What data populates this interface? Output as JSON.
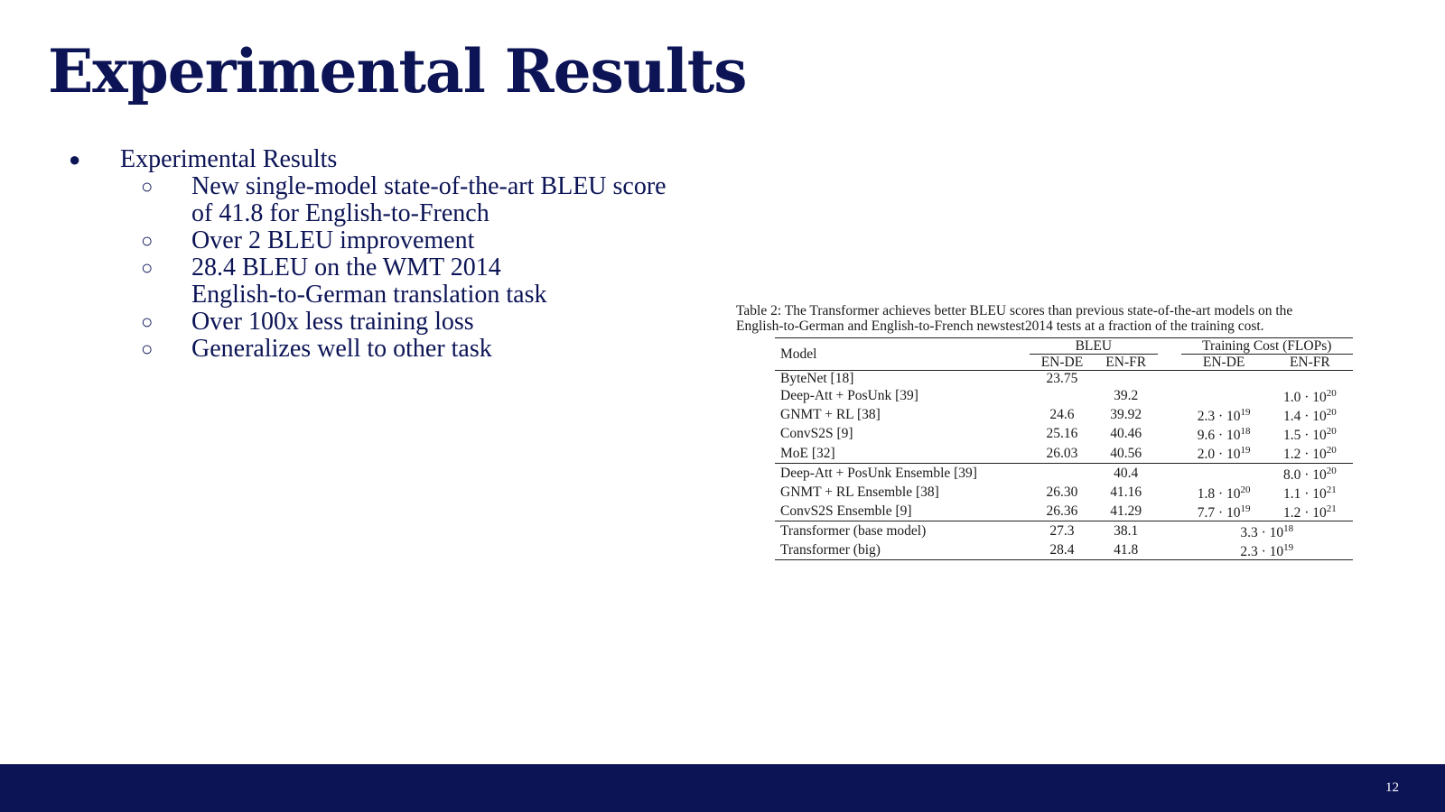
{
  "slide": {
    "title": "Experimental Results",
    "page_number": "12",
    "colors": {
      "title": "#0c1456",
      "footer_bar": "#0c1456",
      "background": "#ffffff"
    }
  },
  "bullets": {
    "main": "Experimental Results",
    "sub": [
      [
        "New single-model state-of-the-art BLEU score",
        "of 41.8 for English-to-French"
      ],
      [
        "Over 2 BLEU improvement"
      ],
      [
        "28.4 BLEU on the WMT 2014",
        "English-to-German translation task"
      ],
      [
        "Over 100x less training loss"
      ],
      [
        "Generalizes well to other task"
      ]
    ]
  },
  "table": {
    "caption_line1": "Table 2: The Transformer achieves better BLEU scores than previous state-of-the-art models on the",
    "caption_line2": "English-to-German and English-to-French newstest2014 tests at a fraction of the training cost.",
    "header": {
      "model": "Model",
      "bleu": "BLEU",
      "cost": "Training Cost (FLOPs)",
      "en_de": "EN-DE",
      "en_fr": "EN-FR"
    },
    "rows": [
      {
        "model": "ByteNet [18]",
        "bleu_de": "23.75",
        "bleu_fr": "",
        "cost_de": "",
        "cost_fr": ""
      },
      {
        "model": "Deep-Att + PosUnk [39]",
        "bleu_de": "",
        "bleu_fr": "39.2",
        "cost_de": "",
        "cost_fr": "1.0 · 10^20"
      },
      {
        "model": "GNMT + RL [38]",
        "bleu_de": "24.6",
        "bleu_fr": "39.92",
        "cost_de": "2.3 · 10^19",
        "cost_fr": "1.4 · 10^20"
      },
      {
        "model": "ConvS2S [9]",
        "bleu_de": "25.16",
        "bleu_fr": "40.46",
        "cost_de": "9.6 · 10^18",
        "cost_fr": "1.5 · 10^20"
      },
      {
        "model": "MoE [32]",
        "bleu_de": "26.03",
        "bleu_fr": "40.56",
        "cost_de": "2.0 · 10^19",
        "cost_fr": "1.2 · 10^20"
      },
      {
        "model": "Deep-Att + PosUnk Ensemble [39]",
        "bleu_de": "",
        "bleu_fr": "40.4",
        "cost_de": "",
        "cost_fr": "8.0 · 10^20"
      },
      {
        "model": "GNMT + RL Ensemble [38]",
        "bleu_de": "26.30",
        "bleu_fr": "41.16",
        "cost_de": "1.8 · 10^20",
        "cost_fr": "1.1 · 10^21"
      },
      {
        "model": "ConvS2S Ensemble [9]",
        "bleu_de": "26.36",
        "bleu_fr": "41.29",
        "cost_de": "7.7 · 10^19",
        "cost_fr": "1.2 · 10^21"
      },
      {
        "model": "Transformer (base model)",
        "bleu_de": "27.3",
        "bleu_fr": "38.1",
        "cost_merged": "3.3 · 10^18"
      },
      {
        "model": "Transformer (big)",
        "bleu_de": "28.4",
        "bleu_fr": "41.8",
        "cost_merged": "2.3 · 10^19"
      }
    ]
  }
}
